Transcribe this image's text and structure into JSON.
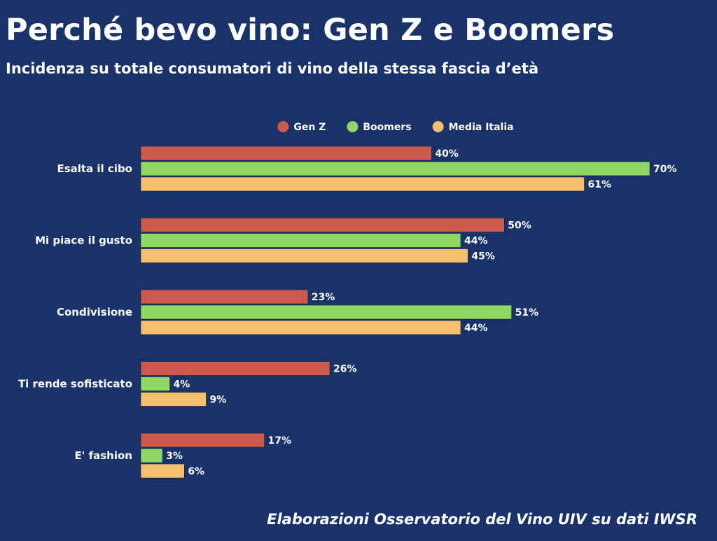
{
  "header": {
    "title": "Perché bevo vino: Gen Z e Boomers",
    "subtitle": "Incidenza su totale consumatori di vino della stessa fascia d’età"
  },
  "footer": {
    "source": "Elaborazioni Osservatorio del Vino UIV su dati IWSR"
  },
  "chart_data": {
    "type": "bar",
    "orientation": "horizontal",
    "legend_position": "top-center",
    "grid": false,
    "xlim": [
      0,
      70
    ],
    "value_suffix": "%",
    "categories": [
      "Esalta il cibo",
      "Mi piace il gusto",
      "Condivisione",
      "Ti rende sofisticato",
      "E' fashion"
    ],
    "series": [
      {
        "name": "Gen Z",
        "color": "#ce5a4e",
        "values": [
          40,
          50,
          23,
          26,
          17
        ]
      },
      {
        "name": "Boomers",
        "color": "#8fd866",
        "values": [
          70,
          44,
          51,
          4,
          3
        ]
      },
      {
        "name": "Media Italia",
        "color": "#f4c06f",
        "values": [
          61,
          45,
          44,
          9,
          6
        ]
      }
    ]
  }
}
